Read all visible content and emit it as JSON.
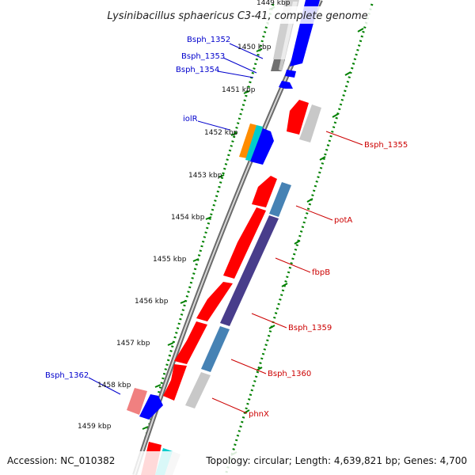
{
  "title": "Lysinibacillus sphaericus C3-41, complete genome",
  "accession": "Accession: NC_010382",
  "topology": "Topology: circular; Length: 4,639,821 bp; Genes: 4,700",
  "kbp_labels": [
    "1449 kbp",
    "1450 kbp",
    "1451 kbp",
    "1452 kbp",
    "1453 kbp",
    "1454 kbp",
    "1455 kbp",
    "1456 kbp",
    "1457 kbp",
    "1458 kbp",
    "1459 kbp"
  ],
  "left_genes": [
    "Bsph_1352",
    "Bsph_1353",
    "Bsph_1354",
    "iolR",
    "Bsph_1362"
  ],
  "right_genes": [
    "Bsph_1355",
    "potA",
    "fbpB",
    "Bsph_1359",
    "Bsph_1360",
    "phnX"
  ],
  "colors": {
    "forward_strand": "#ff0000",
    "reverse_strand": "#0000ff",
    "label_forward": "#cc0000",
    "label_reverse": "#0000cc",
    "backbone": "#888888",
    "ruler": "#008000",
    "pseudo": "#c8c8c8",
    "potA": "#4682b4",
    "fbpB": "#483d8b",
    "iolR_a": "#ff8c00",
    "iolR_b": "#00cccc",
    "pink": "#f08080"
  }
}
